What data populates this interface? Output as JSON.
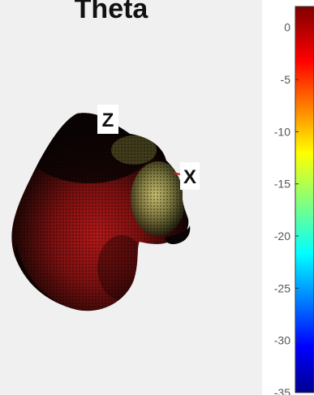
{
  "title": "Theta",
  "axis_labels": {
    "z": "Z",
    "x": "X"
  },
  "chart_data": {
    "type": "surface-3d",
    "title": "Theta",
    "axes_shown": [
      "Z",
      "X"
    ],
    "colorbar": {
      "colormap": "jet",
      "range": [
        -35,
        2
      ],
      "ticks": [
        0,
        -5,
        -10,
        -15,
        -20,
        -25,
        -30,
        -35
      ],
      "tick_labels": [
        "0",
        "-5",
        "-10",
        "-15",
        "-20",
        "-25",
        "-30",
        "-35"
      ]
    },
    "surface_colors": {
      "dominant": "#1a0a00",
      "mid": "#8e1212",
      "highlight": "#c8c878"
    }
  }
}
